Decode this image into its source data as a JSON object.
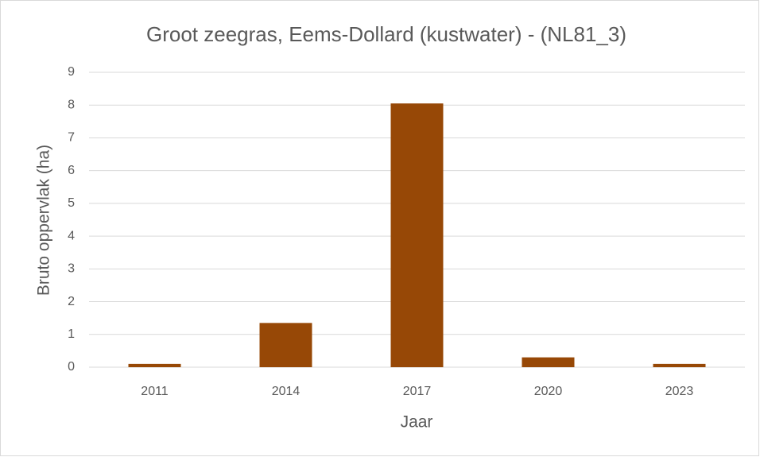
{
  "chart_data": {
    "type": "bar",
    "title": "Groot zeegras, Eems-Dollard (kustwater) - (NL81_3)",
    "x_label": "Jaar",
    "y_label": "Bruto oppervlak (ha)",
    "categories": [
      "2011",
      "2014",
      "2017",
      "2020",
      "2023"
    ],
    "values": [
      0.1,
      1.35,
      8.05,
      0.3,
      0.1
    ],
    "color": "#974806",
    "ylim": [
      0,
      9
    ],
    "yticks": [
      0,
      1,
      2,
      3,
      4,
      5,
      6,
      7,
      8,
      9
    ],
    "grid": true
  }
}
